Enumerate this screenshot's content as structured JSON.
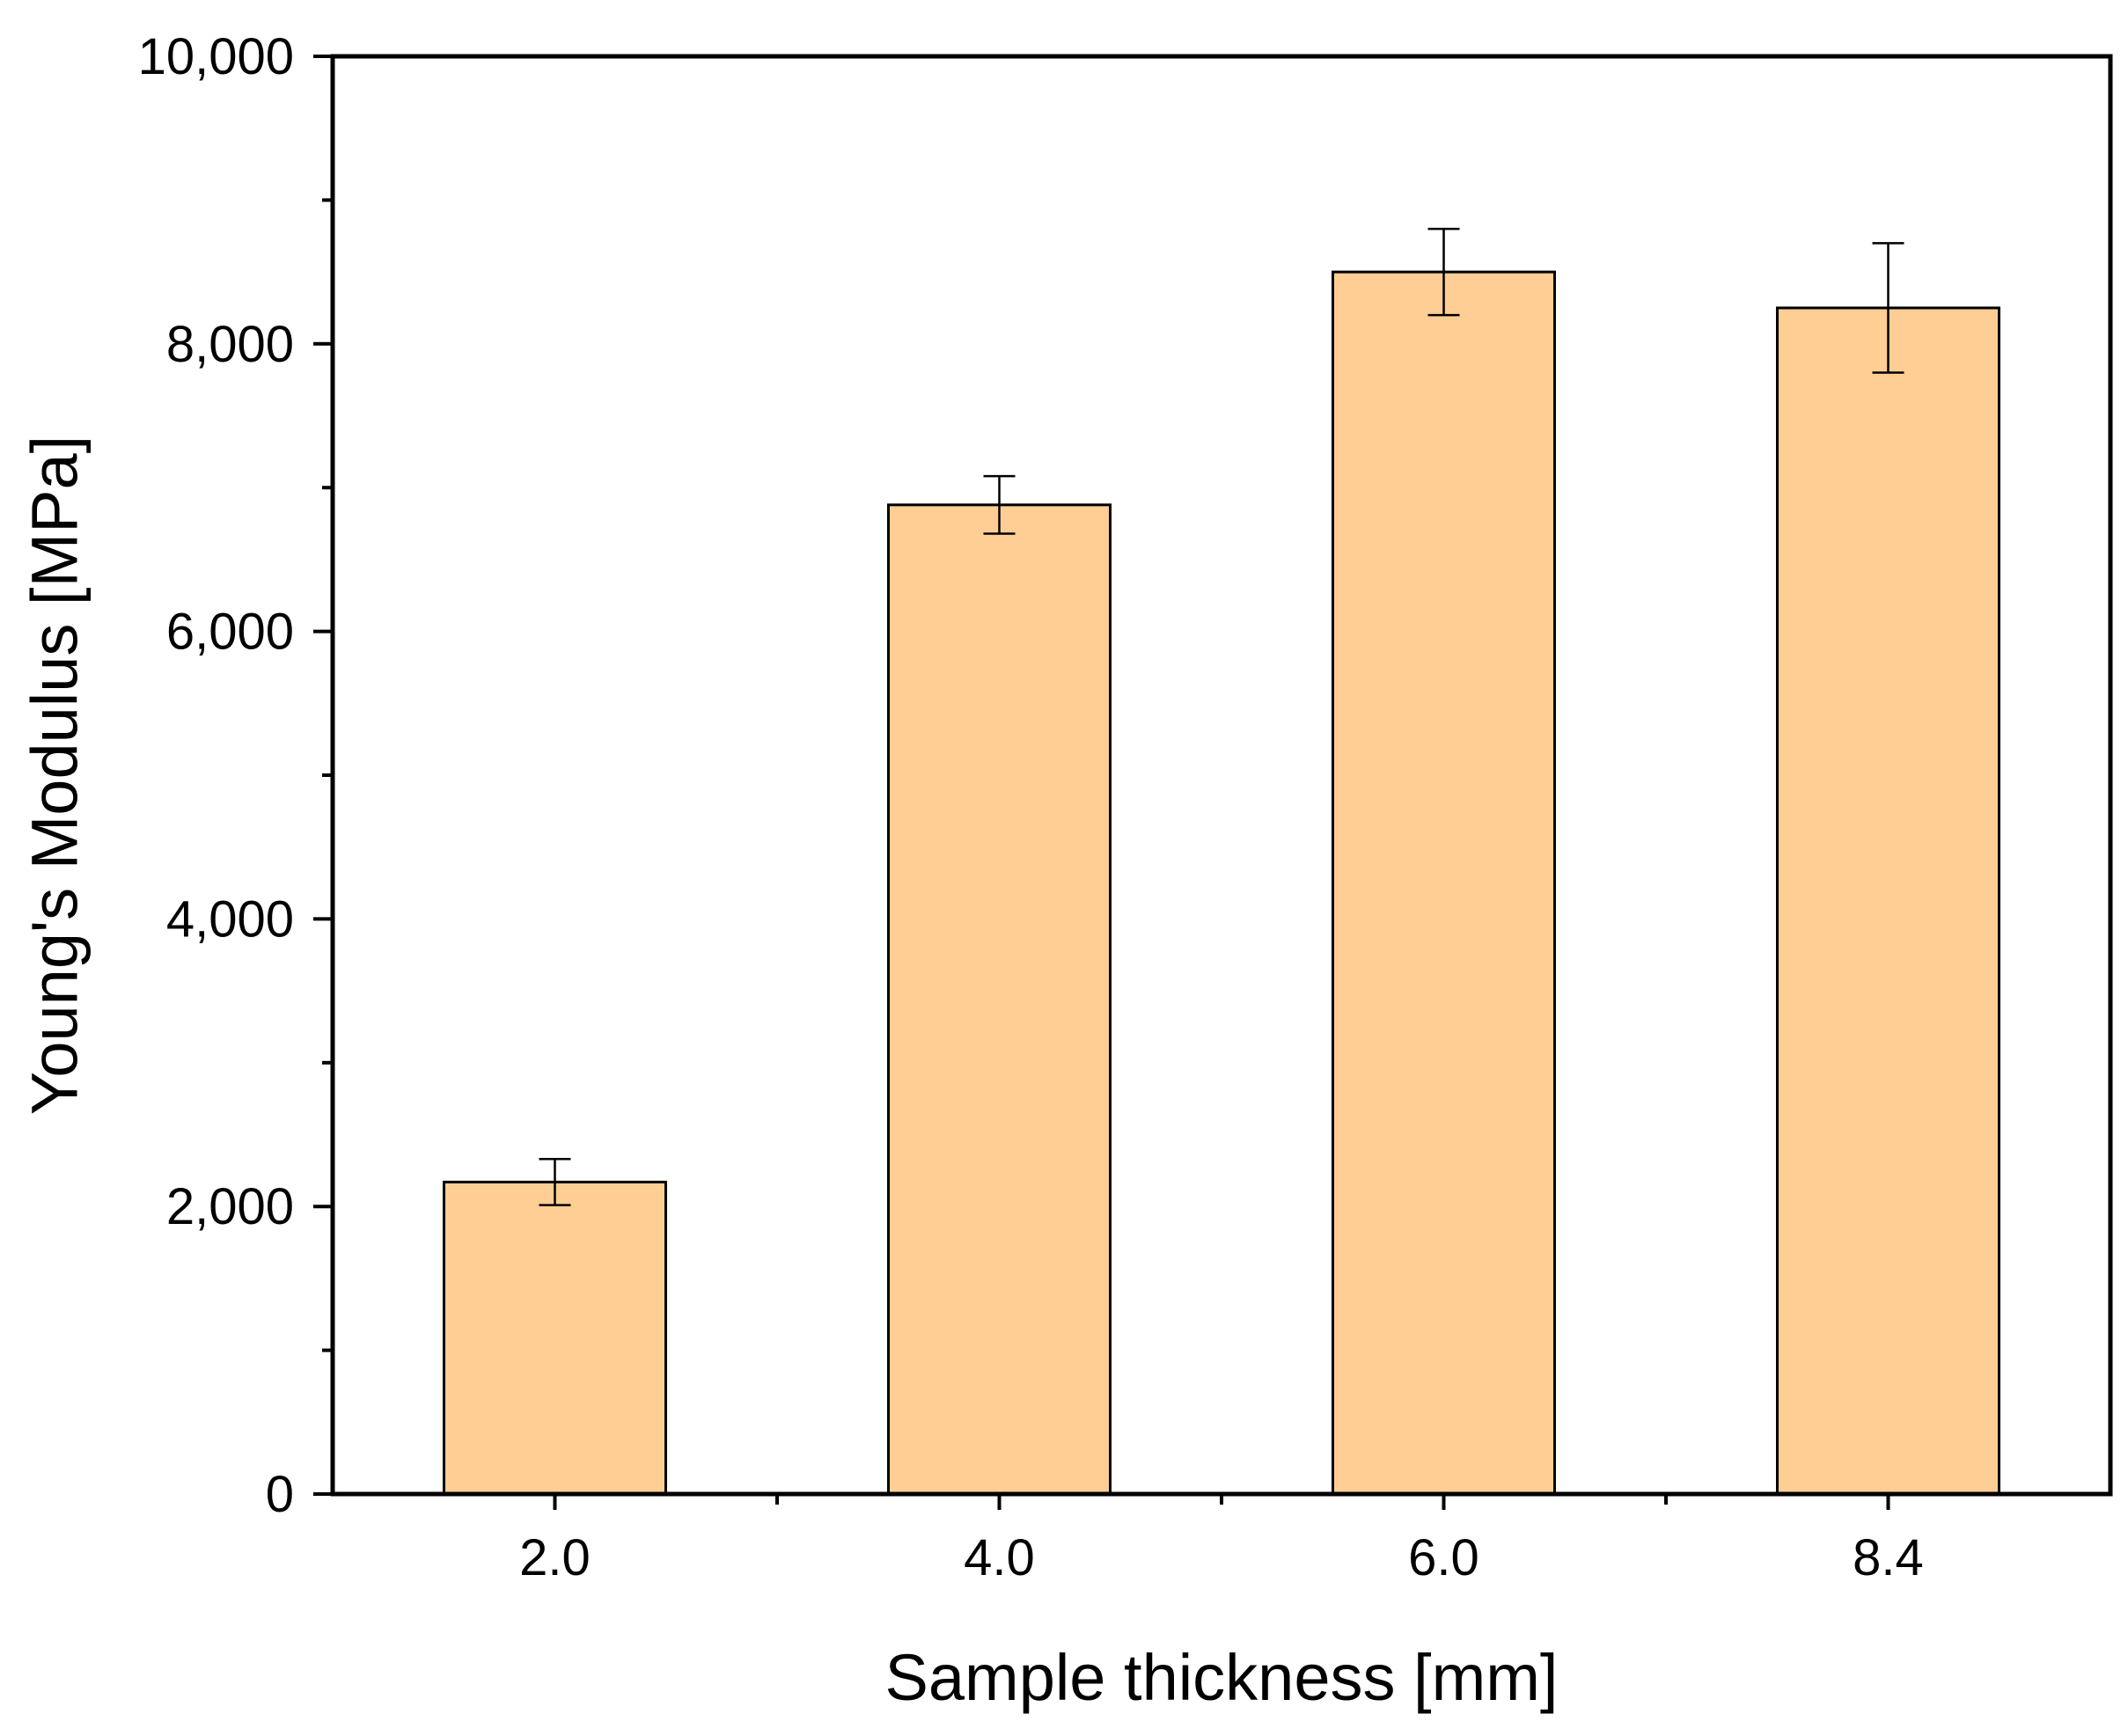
{
  "chart_data": {
    "type": "bar",
    "title": "",
    "xlabel": "Sample thickness [mm]",
    "ylabel": "Young's Modulus [MPa]",
    "categories": [
      "2.0",
      "4.0",
      "6.0",
      "8.4"
    ],
    "values": [
      2170,
      6880,
      8500,
      8250
    ],
    "errors": [
      160,
      200,
      300,
      450
    ],
    "ylim": [
      0,
      10000
    ],
    "yticks_major": [
      0,
      2000,
      4000,
      6000,
      8000,
      10000
    ],
    "ytick_labels": [
      "0",
      "2,000",
      "4,000",
      "6,000",
      "8,000",
      "10,000"
    ],
    "yticks_minor": [
      1000,
      3000,
      5000,
      7000,
      9000
    ],
    "grid": false,
    "legend": "none",
    "colors": {
      "bar_fill": "#FECE94",
      "bar_stroke": "#000000"
    }
  }
}
